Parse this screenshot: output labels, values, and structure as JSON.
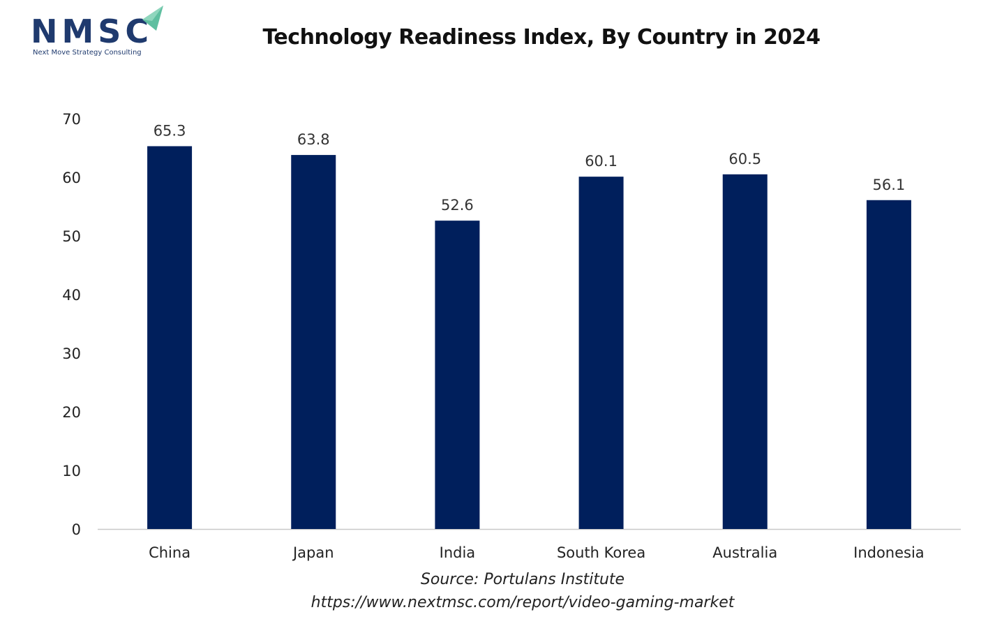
{
  "logo": {
    "mark": "NMSC",
    "tagline": "Next Move Strategy Consulting"
  },
  "colors": {
    "bar": "#001f5c",
    "axis": "#c8c8c8",
    "logo_primary": "#1f3a6e",
    "logo_accent": "#5fbfa0"
  },
  "chart_data": {
    "type": "bar",
    "title": "Technology Readiness Index, By Country in 2024",
    "categories": [
      "China",
      "Japan",
      "India",
      "South Korea",
      "Australia",
      "Indonesia"
    ],
    "values": [
      65.3,
      63.8,
      52.6,
      60.1,
      60.5,
      56.1
    ],
    "value_labels": [
      "65.3",
      "63.8",
      "52.6",
      "60.1",
      "60.5",
      "56.1"
    ],
    "ylim": [
      0,
      70
    ],
    "yticks": [
      "0",
      "10",
      "20",
      "30",
      "40",
      "50",
      "60",
      "70"
    ],
    "grid": false,
    "legend": "none",
    "xlabel": "",
    "ylabel": ""
  },
  "source": {
    "line1": "Source: Portulans Institute",
    "line2": "https://www.nextmsc.com/report/video-gaming-market"
  }
}
